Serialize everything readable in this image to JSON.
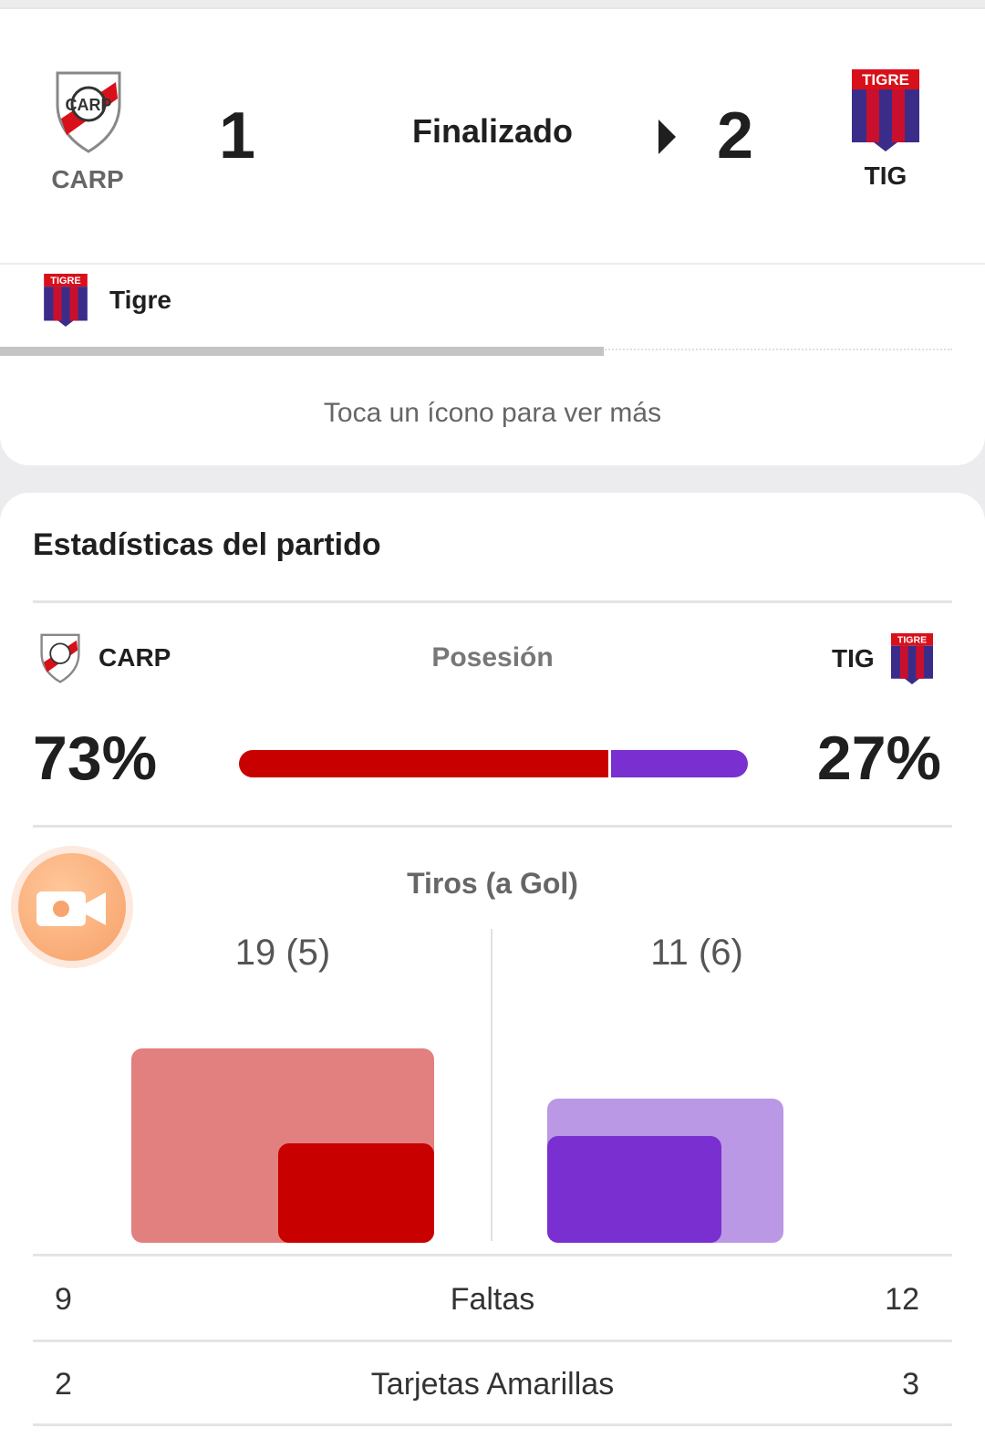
{
  "match": {
    "status": "Finalizado",
    "home": {
      "abbr": "CARP",
      "score": "1",
      "color": "#c80000"
    },
    "away": {
      "abbr": "TIG",
      "score": "2",
      "color": "#7a2fd0",
      "crest_text": "TIGRE"
    }
  },
  "event": {
    "team_name": "Tigre",
    "progress_fraction": 0.62
  },
  "hint": "Toca un ícono para ver más",
  "stats": {
    "title": "Estadísticas del partido",
    "possession": {
      "label": "Posesión",
      "home_pct": "73%",
      "away_pct": "27%",
      "home_value": 73,
      "away_value": 27
    },
    "shots": {
      "label": "Tiros (a Gol)",
      "home_text": "19 (5)",
      "away_text": "11 (6)",
      "home_total": 19,
      "home_on_target": 5,
      "away_total": 11,
      "away_on_target": 6
    },
    "rows": [
      {
        "label": "Faltas",
        "home": "9",
        "away": "12"
      },
      {
        "label": "Tarjetas Amarillas",
        "home": "2",
        "away": "3"
      }
    ]
  },
  "icons": {
    "camera": "video-camera-icon",
    "arrow": "play-arrow-icon"
  }
}
